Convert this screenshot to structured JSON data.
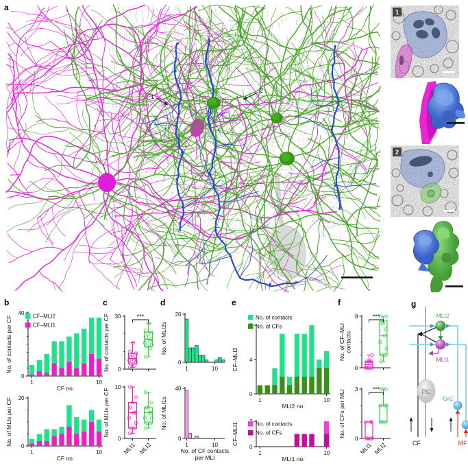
{
  "figure": {
    "panel_letters": {
      "a": "a",
      "b": "b",
      "c": "c",
      "d": "d",
      "e": "e",
      "f": "f",
      "g": "g"
    },
    "panel_a": {
      "arrow1_label": "1",
      "arrow2_label": "2",
      "inset1_label": "1",
      "inset2_label": "2",
      "colors": {
        "mli1_magenta": "#e01fd8",
        "mli2_green": "#45a222",
        "cf_blue": "#2847cf",
        "pc_gray": "#cdcdcd"
      }
    },
    "diagram_g": {
      "labels": {
        "mli2": "MLI2",
        "mli1": "MLI1",
        "pc": "PC",
        "grc": "GrC",
        "cf": "CF",
        "mf": "MF"
      },
      "colors": {
        "mli2": "#3fae3f",
        "mli1": "#c435b5",
        "grc": "#29a8e0",
        "mf": "#e8281e",
        "pf": "#86d2ee",
        "cf": "#333333"
      }
    }
  },
  "chart_data": [
    {
      "id": "b_top",
      "type": "stacked_bar",
      "ylabel": "No. of contacts per CF",
      "xlabel": "CF no.",
      "ylim": [
        0,
        40
      ],
      "yticks": [
        0,
        40
      ],
      "minor_yticks": [
        5,
        10,
        15,
        20,
        25,
        30,
        35
      ],
      "categories": [
        1,
        2,
        3,
        4,
        5,
        6,
        7,
        8,
        9,
        10
      ],
      "series": [
        {
          "name": "CF–MLI1",
          "color": "#ee1fc4",
          "values": [
            1,
            3,
            2,
            8,
            5,
            9,
            5,
            8,
            14,
            11
          ]
        },
        {
          "name": "CF–MLI2",
          "color": "#22e08c",
          "values": [
            6,
            7,
            12,
            14,
            17,
            16,
            22,
            22,
            23,
            26
          ]
        }
      ],
      "xticks": [
        {
          "at": 0.5,
          "label": "1"
        },
        {
          "at": 9.5,
          "label": "10"
        }
      ],
      "legend": [
        {
          "label": "CF–MLI2",
          "color": "#22e08c"
        },
        {
          "label": "CF–MLI1",
          "color": "#ee1fc4"
        }
      ]
    },
    {
      "id": "b_bottom",
      "type": "stacked_bar",
      "ylabel": "No. of MLIs per CF",
      "xlabel": "CF no.",
      "ylim": [
        0,
        20
      ],
      "yticks": [
        0,
        20
      ],
      "minor_yticks": [
        5,
        10,
        15
      ],
      "categories": [
        1,
        2,
        3,
        4,
        5,
        6,
        7,
        8,
        9,
        10
      ],
      "series": [
        {
          "name": "CF–MLI1",
          "color": "#ee1fc4",
          "values": [
            1,
            2,
            2,
            4,
            5,
            8,
            5,
            6,
            10,
            6
          ]
        },
        {
          "name": "CF–MLI2",
          "color": "#22e08c",
          "values": [
            2,
            3,
            5,
            3,
            3,
            9,
            7,
            5,
            5,
            5
          ]
        }
      ],
      "xticks": [
        {
          "at": 0.5,
          "label": "1"
        },
        {
          "at": 9.5,
          "label": "10"
        }
      ]
    },
    {
      "id": "c_top",
      "type": "box",
      "sig": "***",
      "ylabel": "No. of contacts per CF",
      "ylim": [
        0,
        30
      ],
      "yticks": [
        0,
        30
      ],
      "minor_yticks": [
        10,
        20
      ],
      "rot_xlabels": false,
      "groups": [
        {
          "label": "MLI1",
          "color": "#ee1fc4",
          "min": 1,
          "q1": 3,
          "med": 6,
          "q3": 9,
          "max": 15,
          "points": [
            1,
            2,
            3,
            4,
            5,
            5,
            6,
            7,
            8,
            9,
            10,
            15
          ]
        },
        {
          "label": "MLI2",
          "color": "#35cf45",
          "min": 7,
          "q1": 13,
          "med": 17,
          "q3": 21,
          "max": 26,
          "points": [
            7,
            12,
            13,
            14,
            15,
            16,
            17,
            18,
            20,
            21,
            22,
            26
          ]
        }
      ]
    },
    {
      "id": "c_bottom",
      "type": "box",
      "ylabel": "No. of MLIs per CF",
      "ylim": [
        0,
        10
      ],
      "yticks": [
        0,
        10
      ],
      "rot_xlabels": true,
      "groups": [
        {
          "label": "MLI1",
          "color": "#ee1fc4",
          "min": 1,
          "q1": 2,
          "med": 5,
          "q3": 7,
          "max": 10,
          "points": [
            1,
            2,
            2,
            3,
            4,
            5,
            5,
            6,
            7,
            8,
            10
          ]
        },
        {
          "label": "MLI2",
          "color": "#35cf45",
          "min": 2,
          "q1": 3,
          "med": 5,
          "q3": 6,
          "max": 9,
          "points": [
            2,
            3,
            3,
            4,
            4,
            5,
            5,
            6,
            6,
            7,
            9
          ]
        }
      ]
    },
    {
      "id": "d_top",
      "type": "histogram",
      "ylabel": "No. of MLI2s",
      "ylim": [
        0,
        20
      ],
      "yticks": [
        0,
        20
      ],
      "color": "#22e08c",
      "values": [
        18,
        6,
        6,
        7,
        3,
        3,
        1,
        0,
        0,
        1,
        2,
        1
      ],
      "xticks": [
        {
          "at": 0.5,
          "label": "1"
        },
        {
          "at": 9.0,
          "label": "10"
        }
      ]
    },
    {
      "id": "d_bottom",
      "type": "histogram",
      "ylabel": "No. of MLI1s",
      "ylim": [
        0,
        40
      ],
      "yticks": [
        0,
        40
      ],
      "color": "#f2a0e6",
      "values": [
        38,
        4,
        0,
        2,
        0,
        0,
        0,
        0,
        0,
        0,
        0,
        0
      ],
      "xticks": [
        {
          "at": 0.5,
          "label": "1"
        },
        {
          "at": 9.0,
          "label": "10"
        }
      ],
      "xlabel": [
        "No. of CF contacts",
        "per MLI"
      ]
    },
    {
      "id": "e_top",
      "type": "overlay_bar",
      "ylabel": "CF–MLI2",
      "xlabel": "MLI2 no.",
      "ylim": [
        0,
        8
      ],
      "yticks": [
        0,
        4,
        8
      ],
      "light": {
        "name": "No. of contacts",
        "color": "#22e08c",
        "values": [
          1,
          1,
          3,
          7,
          2,
          7,
          7,
          8,
          4,
          5
        ]
      },
      "dark": {
        "name": "No. of CFs",
        "color": "#3c8f16",
        "values": [
          1,
          1,
          1,
          2,
          1,
          2,
          2,
          2,
          3,
          3
        ]
      },
      "xticks": [
        {
          "at": 0.5,
          "label": "1"
        },
        {
          "at": 9.5,
          "label": "10"
        }
      ],
      "legend": [
        {
          "label": "No. of contacts",
          "color": "#22e08c"
        },
        {
          "label": "No. of CFs",
          "color": "#3c8f16"
        }
      ]
    },
    {
      "id": "e_bottom",
      "type": "overlay_bar",
      "ylabel": "CF–MLI1",
      "xlabel": "MLI1 no.",
      "ylim": [
        0,
        2
      ],
      "yticks": [
        0,
        2
      ],
      "light": {
        "name": "No. of contacts",
        "color": "#f43fd0",
        "values": [
          0,
          0,
          0,
          0,
          0,
          1,
          1,
          1,
          0,
          2
        ]
      },
      "dark": {
        "name": "No. of CFs",
        "color": "#bf0fa0",
        "values": [
          0,
          0,
          0,
          0,
          0,
          1,
          1,
          1,
          0,
          1
        ]
      },
      "xticks": [
        {
          "at": 0.5,
          "label": "1"
        },
        {
          "at": 9.5,
          "label": "10"
        }
      ],
      "legend": [
        {
          "label": "No. of contacts",
          "color": "#f43fd0"
        },
        {
          "label": "No. of CFs",
          "color": "#bf0fa0"
        }
      ]
    },
    {
      "id": "f_top",
      "type": "box",
      "sig": "***",
      "ylabel": [
        "No. of CF–MLI",
        "contacts"
      ],
      "ylim": [
        0,
        8
      ],
      "yticks": [
        0,
        8
      ],
      "minor_yticks": [
        2,
        4,
        6
      ],
      "rot_xlabels": false,
      "groups": [
        {
          "label": "MLI1",
          "color": "#ee1fc4",
          "min": 0,
          "q1": 0,
          "med": 0.5,
          "q3": 1,
          "max": 2,
          "points": [
            0,
            0,
            0,
            0,
            0,
            1,
            1,
            1,
            1,
            2
          ]
        },
        {
          "label": "MLI2",
          "color": "#35cf45",
          "min": 1,
          "q1": 2,
          "med": 5,
          "q3": 7.4,
          "max": 8,
          "points": [
            1,
            2,
            2,
            3,
            4,
            5,
            6,
            7,
            7,
            8,
            8
          ]
        }
      ]
    },
    {
      "id": "f_bottom",
      "type": "box",
      "sig": "***",
      "ylabel": "No. of CFs per MLI",
      "ylim": [
        0,
        3
      ],
      "yticks": [
        0,
        3
      ],
      "minor_yticks": [
        1,
        2
      ],
      "rot_xlabels": true,
      "groups": [
        {
          "label": "MLI1",
          "color": "#ee1fc4",
          "min": 0,
          "q1": 0,
          "med": 0,
          "q3": 1,
          "max": 1,
          "points": [
            0,
            0,
            0,
            0,
            1,
            1,
            1
          ]
        },
        {
          "label": "MLI2",
          "color": "#35cf45",
          "min": 1,
          "q1": 1,
          "med": 2,
          "q3": 2,
          "max": 3,
          "points": [
            1,
            1,
            1,
            2,
            2,
            2,
            3,
            3
          ]
        }
      ]
    }
  ]
}
